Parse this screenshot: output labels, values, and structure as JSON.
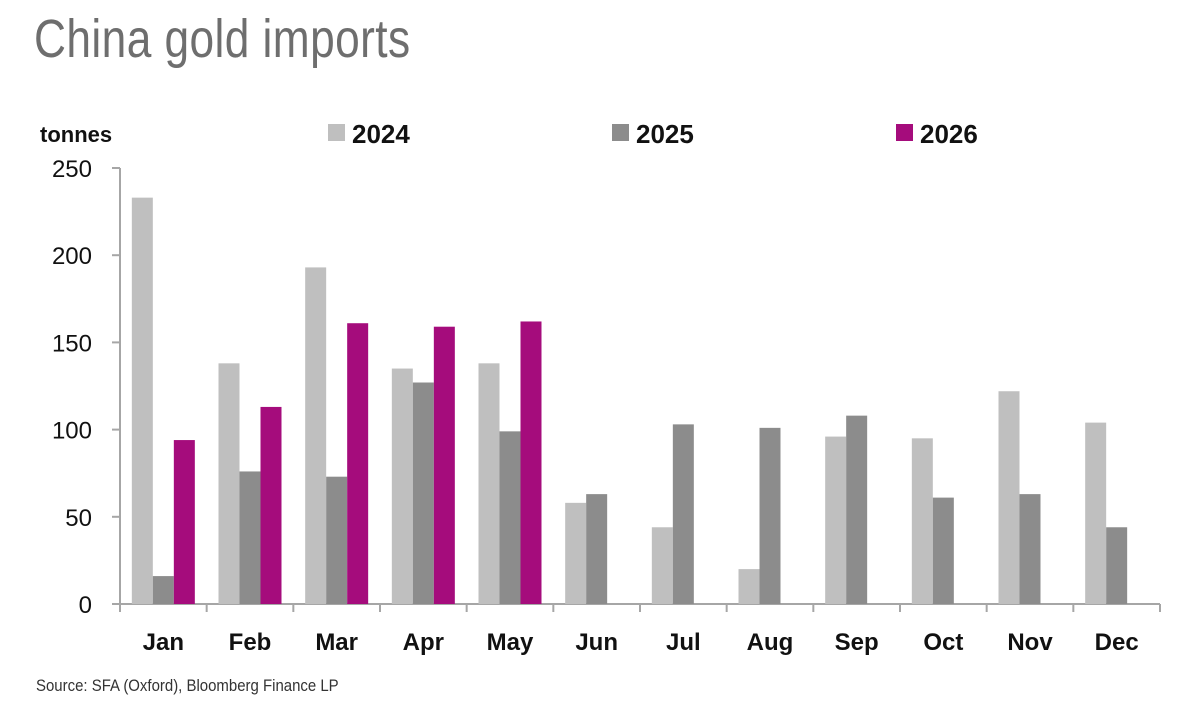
{
  "title": "China gold imports",
  "source": "Source: SFA (Oxford), Bloomberg Finance LP",
  "chart_data": {
    "type": "bar",
    "title": "China gold imports",
    "ylabel": "tonnes",
    "xlabel": "",
    "ylim": [
      0,
      250
    ],
    "yticks": [
      "0",
      "50",
      "100",
      "150",
      "200",
      "250"
    ],
    "grid": false,
    "legend_position": "top",
    "categories": [
      "Jan",
      "Feb",
      "Mar",
      "Apr",
      "May",
      "Jun",
      "Jul",
      "Aug",
      "Sep",
      "Oct",
      "Nov",
      "Dec"
    ],
    "series": [
      {
        "name": "2024",
        "color": "#bfbfbf",
        "values": [
          233,
          138,
          193,
          135,
          138,
          58,
          44,
          20,
          96,
          95,
          122,
          104
        ]
      },
      {
        "name": "2025",
        "color": "#8c8c8c",
        "values": [
          16,
          76,
          73,
          127,
          99,
          63,
          103,
          101,
          108,
          61,
          63,
          44
        ]
      },
      {
        "name": "2026",
        "color": "#a50c7c",
        "values": [
          94,
          113,
          161,
          159,
          162,
          null,
          null,
          null,
          null,
          null,
          null,
          null
        ]
      }
    ]
  }
}
